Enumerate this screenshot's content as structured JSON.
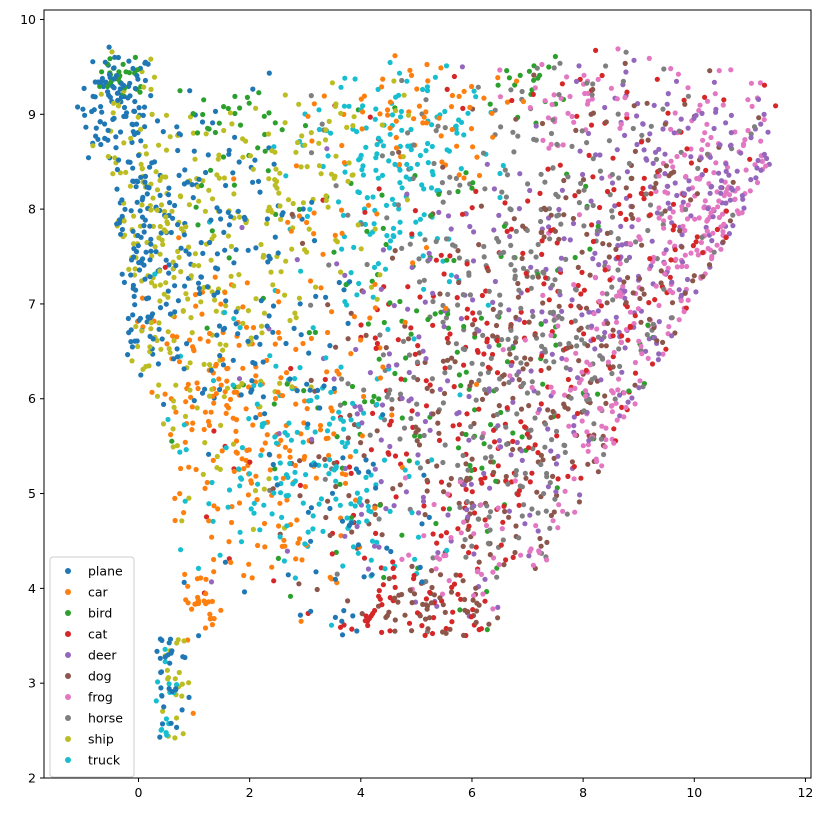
{
  "chart_data": {
    "type": "scatter",
    "xlim": [
      -1.7,
      12.1
    ],
    "ylim": [
      2,
      10.1
    ],
    "xticks": [
      "0",
      "2",
      "4",
      "6",
      "8",
      "10",
      "12"
    ],
    "yticks": [
      "2",
      "3",
      "4",
      "5",
      "6",
      "7",
      "8",
      "9",
      "10"
    ],
    "grid": false,
    "legend_position": "lower-left",
    "series": [
      {
        "name": "plane",
        "color": "#1f77b4",
        "clusters": [
          {
            "center": [
              -0.4,
              9.1
            ],
            "spread": [
              0.35,
              0.3
            ],
            "n": 90
          },
          {
            "center": [
              0.0,
              7.6
            ],
            "spread": [
              0.5,
              0.8
            ],
            "n": 140
          },
          {
            "center": [
              1.5,
              7.9
            ],
            "spread": [
              0.9,
              0.7
            ],
            "n": 90
          },
          {
            "center": [
              2.2,
              6.3
            ],
            "spread": [
              1.0,
              0.6
            ],
            "n": 60
          },
          {
            "center": [
              0.6,
              3.2
            ],
            "spread": [
              0.2,
              0.45
            ],
            "n": 30
          },
          {
            "center": [
              3.8,
              4.4
            ],
            "spread": [
              1.0,
              0.6
            ],
            "n": 40
          }
        ]
      },
      {
        "name": "car",
        "color": "#ff7f0e",
        "clusters": [
          {
            "center": [
              1.5,
              5.9
            ],
            "spread": [
              0.9,
              0.8
            ],
            "n": 140
          },
          {
            "center": [
              2.6,
              5.2
            ],
            "spread": [
              0.9,
              0.8
            ],
            "n": 80
          },
          {
            "center": [
              4.8,
              9.0
            ],
            "spread": [
              0.9,
              0.35
            ],
            "n": 60
          },
          {
            "center": [
              1.0,
              3.9
            ],
            "spread": [
              0.25,
              0.2
            ],
            "n": 25
          },
          {
            "center": [
              3.8,
              7.0
            ],
            "spread": [
              1.0,
              0.9
            ],
            "n": 40
          }
        ]
      },
      {
        "name": "bird",
        "color": "#2ca02c",
        "clusters": [
          {
            "center": [
              -0.3,
              9.4
            ],
            "spread": [
              0.25,
              0.12
            ],
            "n": 30
          },
          {
            "center": [
              7.0,
              9.3
            ],
            "spread": [
              0.3,
              0.15
            ],
            "n": 20
          },
          {
            "center": [
              5.5,
              6.2
            ],
            "spread": [
              2.2,
              1.3
            ],
            "n": 150
          },
          {
            "center": [
              1.8,
              8.9
            ],
            "spread": [
              0.6,
              0.3
            ],
            "n": 30
          }
        ]
      },
      {
        "name": "cat",
        "color": "#d62728",
        "clusters": [
          {
            "center": [
              6.5,
              5.6
            ],
            "spread": [
              2.0,
              1.4
            ],
            "n": 230
          },
          {
            "center": [
              8.5,
              8.0
            ],
            "spread": [
              1.5,
              0.9
            ],
            "n": 90
          },
          {
            "center": [
              4.5,
              3.6
            ],
            "spread": [
              0.8,
              0.3
            ],
            "n": 40
          }
        ]
      },
      {
        "name": "deer",
        "color": "#9467bd",
        "clusters": [
          {
            "center": [
              9.5,
              7.3
            ],
            "spread": [
              1.5,
              1.2
            ],
            "n": 200
          },
          {
            "center": [
              5.5,
              5.8
            ],
            "spread": [
              1.5,
              1.3
            ],
            "n": 140
          },
          {
            "center": [
              10.5,
              8.5
            ],
            "spread": [
              0.8,
              0.3
            ],
            "n": 50
          }
        ]
      },
      {
        "name": "dog",
        "color": "#8c564b",
        "clusters": [
          {
            "center": [
              6.5,
              5.2
            ],
            "spread": [
              1.8,
              1.3
            ],
            "n": 230
          },
          {
            "center": [
              8.8,
              7.8
            ],
            "spread": [
              1.4,
              0.9
            ],
            "n": 110
          },
          {
            "center": [
              5.2,
              3.7
            ],
            "spread": [
              0.6,
              0.3
            ],
            "n": 40
          }
        ]
      },
      {
        "name": "frog",
        "color": "#e377c2",
        "clusters": [
          {
            "center": [
              10.6,
              7.6
            ],
            "spread": [
              0.7,
              0.9
            ],
            "n": 150
          },
          {
            "center": [
              9.0,
              5.8
            ],
            "spread": [
              1.0,
              1.0
            ],
            "n": 130
          },
          {
            "center": [
              7.8,
              9.1
            ],
            "spread": [
              0.8,
              0.25
            ],
            "n": 40
          },
          {
            "center": [
              6.2,
              4.4
            ],
            "spread": [
              0.8,
              0.4
            ],
            "n": 40
          }
        ]
      },
      {
        "name": "horse",
        "color": "#7f7f7f",
        "clusters": [
          {
            "center": [
              6.5,
              6.8
            ],
            "spread": [
              1.5,
              1.5
            ],
            "n": 260
          },
          {
            "center": [
              7.4,
              5.4
            ],
            "spread": [
              1.2,
              1.0
            ],
            "n": 80
          },
          {
            "center": [
              8.5,
              8.5
            ],
            "spread": [
              1.5,
              0.6
            ],
            "n": 60
          }
        ]
      },
      {
        "name": "ship",
        "color": "#bcbd22",
        "clusters": [
          {
            "center": [
              0.2,
              8.0
            ],
            "spread": [
              0.6,
              1.0
            ],
            "n": 140
          },
          {
            "center": [
              1.2,
              6.8
            ],
            "spread": [
              0.9,
              1.0
            ],
            "n": 110
          },
          {
            "center": [
              2.4,
              8.0
            ],
            "spread": [
              0.9,
              0.8
            ],
            "n": 70
          },
          {
            "center": [
              0.6,
              3.1
            ],
            "spread": [
              0.15,
              0.35
            ],
            "n": 20
          },
          {
            "center": [
              3.5,
              8.6
            ],
            "spread": [
              0.8,
              0.5
            ],
            "n": 30
          }
        ]
      },
      {
        "name": "truck",
        "color": "#17becf",
        "clusters": [
          {
            "center": [
              4.6,
              8.2
            ],
            "spread": [
              0.9,
              0.6
            ],
            "n": 130
          },
          {
            "center": [
              5.0,
              9.0
            ],
            "spread": [
              0.8,
              0.3
            ],
            "n": 40
          },
          {
            "center": [
              2.4,
              5.6
            ],
            "spread": [
              1.0,
              0.8
            ],
            "n": 90
          },
          {
            "center": [
              3.8,
              5.0
            ],
            "spread": [
              0.8,
              0.6
            ],
            "n": 80
          },
          {
            "center": [
              0.5,
              2.7
            ],
            "spread": [
              0.12,
              0.25
            ],
            "n": 15
          }
        ]
      }
    ]
  }
}
